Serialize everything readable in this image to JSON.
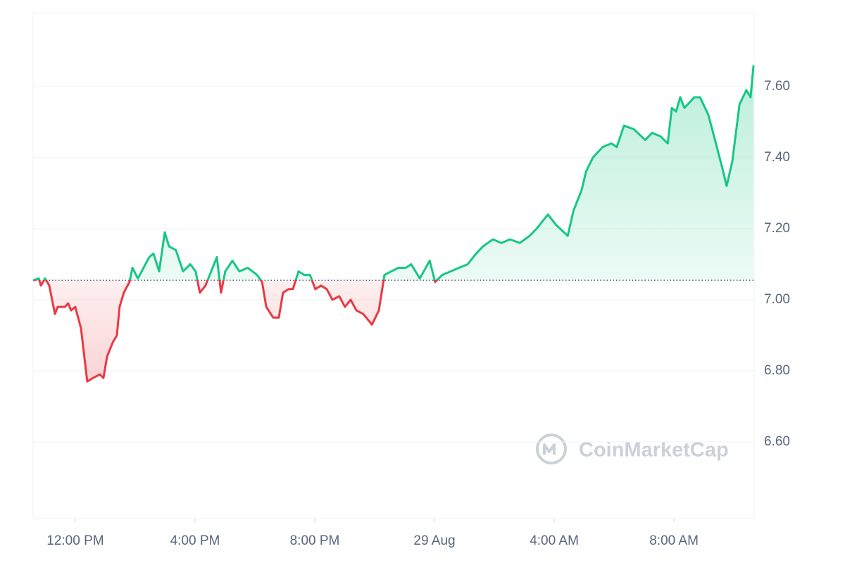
{
  "chart_data": {
    "type": "line",
    "x": [
      10.59,
      10.78,
      10.85,
      10.99,
      11.13,
      11.32,
      11.41,
      11.65,
      11.76,
      11.86,
      12.0,
      12.19,
      12.4,
      12.59,
      12.82,
      12.94,
      13.06,
      13.25,
      13.39,
      13.48,
      13.62,
      13.81,
      13.91,
      14.09,
      14.28,
      14.47,
      14.61,
      14.8,
      14.99,
      15.13,
      15.36,
      15.6,
      15.84,
      16.02,
      16.16,
      16.35,
      16.54,
      16.73,
      16.87,
      17.01,
      17.25,
      17.48,
      17.76,
      18.07,
      18.24,
      18.38,
      18.61,
      18.8,
      18.94,
      19.13,
      19.27,
      19.46,
      19.65,
      19.84,
      20.02,
      20.21,
      20.4,
      20.59,
      20.82,
      21.01,
      21.2,
      21.39,
      21.62,
      21.91,
      22.14,
      22.33,
      22.56,
      22.8,
      23.04,
      23.22,
      23.51,
      23.84,
      24.02,
      24.26,
      24.54,
      24.82,
      25.11,
      25.39,
      25.62,
      25.95,
      26.24,
      26.52,
      26.85,
      27.18,
      27.41,
      27.79,
      28.07,
      28.45,
      28.64,
      28.92,
      29.06,
      29.29,
      29.62,
      29.91,
      30.09,
      30.33,
      30.66,
      31.04,
      31.27,
      31.55,
      31.79,
      31.93,
      32.07,
      32.21,
      32.35,
      32.68,
      32.87,
      33.15,
      33.34,
      33.62,
      33.76,
      33.95,
      34.19,
      34.42,
      34.56,
      34.66
    ],
    "values": [
      7.055,
      7.06,
      7.04,
      7.06,
      7.04,
      6.96,
      6.98,
      6.98,
      6.99,
      6.97,
      6.98,
      6.92,
      6.77,
      6.78,
      6.79,
      6.78,
      6.84,
      6.88,
      6.9,
      6.98,
      7.02,
      7.05,
      7.09,
      7.06,
      7.09,
      7.12,
      7.13,
      7.08,
      7.19,
      7.15,
      7.14,
      7.08,
      7.1,
      7.08,
      7.02,
      7.04,
      7.08,
      7.12,
      7.02,
      7.08,
      7.11,
      7.08,
      7.09,
      7.07,
      7.05,
      6.98,
      6.95,
      6.95,
      7.02,
      7.03,
      7.03,
      7.08,
      7.07,
      7.07,
      7.03,
      7.04,
      7.03,
      7.0,
      7.01,
      6.98,
      7.0,
      6.97,
      6.96,
      6.93,
      6.97,
      7.07,
      7.08,
      7.09,
      7.09,
      7.1,
      7.06,
      7.11,
      7.05,
      7.07,
      7.08,
      7.09,
      7.1,
      7.13,
      7.15,
      7.17,
      7.16,
      7.17,
      7.16,
      7.18,
      7.2,
      7.24,
      7.21,
      7.18,
      7.25,
      7.31,
      7.36,
      7.4,
      7.43,
      7.44,
      7.43,
      7.49,
      7.48,
      7.45,
      7.47,
      7.46,
      7.44,
      7.54,
      7.53,
      7.57,
      7.54,
      7.57,
      7.57,
      7.52,
      7.46,
      7.37,
      7.32,
      7.39,
      7.55,
      7.59,
      7.57,
      7.66
    ],
    "baseline": 7.055,
    "up_color": "#16c784",
    "down_color": "#ea3943",
    "xlim": [
      10.59,
      34.68
    ],
    "xticks": [
      {
        "value": 12,
        "label": "12:00 PM"
      },
      {
        "value": 16,
        "label": "4:00 PM"
      },
      {
        "value": 20,
        "label": "8:00 PM"
      },
      {
        "value": 24,
        "label": "29 Aug"
      },
      {
        "value": 28,
        "label": "4:00 AM"
      },
      {
        "value": 32,
        "label": "8:00 AM"
      }
    ],
    "ylim": [
      6.384,
      7.808
    ],
    "yticks": [
      {
        "value": 6.6,
        "label": "6.60"
      },
      {
        "value": 6.8,
        "label": "6.80"
      },
      {
        "value": 7.0,
        "label": "7.00"
      },
      {
        "value": 7.2,
        "label": "7.20"
      },
      {
        "value": 7.4,
        "label": "7.40"
      },
      {
        "value": 7.6,
        "label": "7.60"
      }
    ],
    "grid": true,
    "watermark": "CoinMarketCap"
  }
}
